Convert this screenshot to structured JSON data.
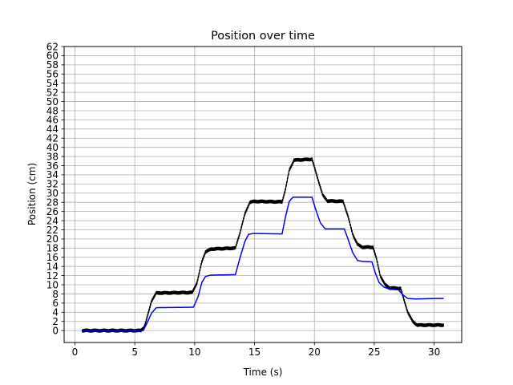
{
  "chart_data": {
    "type": "line",
    "title": "Position over time",
    "xlabel": "Time (s)",
    "ylabel": "Position (cm)",
    "xlim": [
      -0.9,
      32.3
    ],
    "ylim": [
      -2.6,
      62
    ],
    "x_ticks": [
      0,
      5,
      10,
      15,
      20,
      25,
      30
    ],
    "y_ticks": [
      0,
      2,
      4,
      6,
      8,
      10,
      12,
      14,
      16,
      18,
      20,
      22,
      24,
      26,
      28,
      30,
      32,
      34,
      36,
      38,
      40,
      42,
      44,
      46,
      48,
      50,
      52,
      54,
      56,
      58,
      60,
      62
    ],
    "grid": true,
    "series": [
      {
        "color": "#000000",
        "noise": 0.35,
        "points": [
          [
            0.6,
            0.0
          ],
          [
            5.5,
            0.0
          ],
          [
            5.8,
            0.8
          ],
          [
            6.1,
            3.5
          ],
          [
            6.4,
            6.5
          ],
          [
            6.8,
            8.2
          ],
          [
            9.8,
            8.3
          ],
          [
            10.2,
            10.5
          ],
          [
            10.6,
            15.0
          ],
          [
            10.9,
            17.2
          ],
          [
            11.4,
            17.8
          ],
          [
            13.4,
            18.0
          ],
          [
            13.8,
            21.5
          ],
          [
            14.2,
            25.5
          ],
          [
            14.6,
            28.0
          ],
          [
            15.0,
            28.2
          ],
          [
            17.3,
            28.1
          ],
          [
            17.6,
            31.0
          ],
          [
            17.9,
            35.0
          ],
          [
            18.3,
            37.2
          ],
          [
            19.8,
            37.4
          ],
          [
            20.3,
            33.0
          ],
          [
            20.7,
            29.5
          ],
          [
            21.1,
            28.3
          ],
          [
            22.4,
            28.2
          ],
          [
            22.8,
            25.0
          ],
          [
            23.2,
            21.0
          ],
          [
            23.6,
            18.8
          ],
          [
            24.0,
            18.2
          ],
          [
            24.9,
            18.2
          ],
          [
            25.2,
            15.5
          ],
          [
            25.5,
            12.0
          ],
          [
            25.9,
            10.0
          ],
          [
            26.3,
            9.3
          ],
          [
            27.2,
            9.2
          ],
          [
            27.5,
            6.5
          ],
          [
            27.8,
            4.0
          ],
          [
            28.2,
            2.0
          ],
          [
            28.6,
            1.2
          ],
          [
            30.8,
            1.2
          ]
        ]
      },
      {
        "color": "#0000ff",
        "noise": 0,
        "points": [
          [
            0.6,
            0.0
          ],
          [
            5.7,
            0.0
          ],
          [
            6.0,
            1.5
          ],
          [
            6.4,
            3.8
          ],
          [
            6.8,
            5.0
          ],
          [
            9.9,
            5.1
          ],
          [
            10.3,
            7.5
          ],
          [
            10.6,
            10.5
          ],
          [
            10.9,
            11.8
          ],
          [
            11.3,
            12.1
          ],
          [
            13.4,
            12.2
          ],
          [
            13.8,
            16.0
          ],
          [
            14.2,
            19.5
          ],
          [
            14.5,
            21.0
          ],
          [
            14.9,
            21.2
          ],
          [
            17.3,
            21.1
          ],
          [
            17.6,
            25.0
          ],
          [
            17.9,
            28.2
          ],
          [
            18.2,
            29.1
          ],
          [
            19.8,
            29.1
          ],
          [
            20.1,
            26.5
          ],
          [
            20.5,
            23.5
          ],
          [
            20.9,
            22.2
          ],
          [
            22.5,
            22.2
          ],
          [
            22.8,
            20.0
          ],
          [
            23.2,
            17.0
          ],
          [
            23.6,
            15.3
          ],
          [
            24.0,
            15.1
          ],
          [
            24.8,
            15.0
          ],
          [
            25.1,
            12.5
          ],
          [
            25.4,
            10.5
          ],
          [
            25.8,
            9.5
          ],
          [
            26.3,
            9.0
          ],
          [
            27.0,
            8.9
          ],
          [
            27.4,
            7.8
          ],
          [
            27.8,
            7.0
          ],
          [
            28.5,
            6.9
          ],
          [
            30.0,
            7.0
          ],
          [
            30.8,
            7.0
          ]
        ]
      }
    ]
  }
}
